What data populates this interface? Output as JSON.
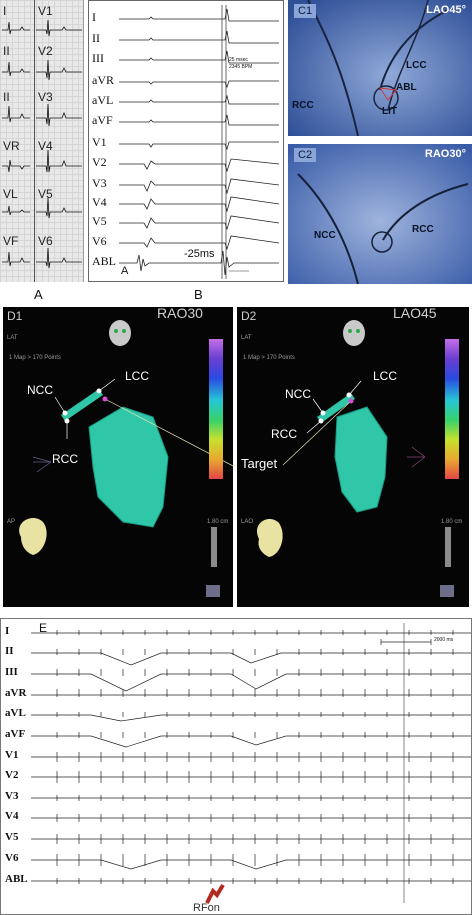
{
  "panel_a": {
    "leads_left": [
      "I",
      "II",
      "II",
      "VR",
      "VL",
      "VF"
    ],
    "leads_right": [
      "V1",
      "V2",
      "V3",
      "V4",
      "V5",
      "V6"
    ],
    "caption": "A"
  },
  "panel_b": {
    "leads": [
      "I",
      "II",
      "III",
      "aVR",
      "aVL",
      "aVF",
      "V1",
      "V2",
      "V3",
      "V4",
      "V5",
      "V6",
      "ABL"
    ],
    "measure_line1": "25 msec",
    "measure_line2": "2345 BPM",
    "interval_label": "-25ms",
    "corner_label": "A",
    "caption": "B"
  },
  "panel_c1": {
    "tag": "C1",
    "view": "LAO45°",
    "labels": {
      "lcc": "LCC",
      "abl": "ABL",
      "rcc": "RCC",
      "lit": "LIT"
    }
  },
  "panel_c2": {
    "tag": "C2",
    "view": "RAO30°",
    "labels": {
      "ncc": "NCC",
      "rcc": "RCC"
    }
  },
  "panel_d1": {
    "tag": "D1",
    "view": "RAO30",
    "lat": "LAT",
    "map_info": "1 Map > 170 Points",
    "orientation": "AP",
    "scale": "1.80 cm",
    "labels": {
      "ncc": "NCC",
      "lcc": "LCC",
      "rcc": "RCC"
    }
  },
  "panel_d2": {
    "tag": "D2",
    "view": "LAO45",
    "lat": "LAT",
    "map_info": "1 Map > 170 Points",
    "orientation": "LAO",
    "scale": "1.80 cm",
    "labels": {
      "ncc": "NCC",
      "lcc": "LCC",
      "rcc": "RCC"
    }
  },
  "target_label": "Target",
  "panel_e": {
    "tag": "E",
    "leads": [
      "I",
      "II",
      "III",
      "aVR",
      "aVL",
      "aVF",
      "V1",
      "V2",
      "V3",
      "V4",
      "V5",
      "V6",
      "ABL"
    ],
    "scale_bar": "2000 ms",
    "rf_label": "RFon"
  },
  "colors": {
    "fluoro_blue": "#3a5fa8",
    "map_teal": "#2fc7a8",
    "rf_arrow": "#b42a22"
  }
}
